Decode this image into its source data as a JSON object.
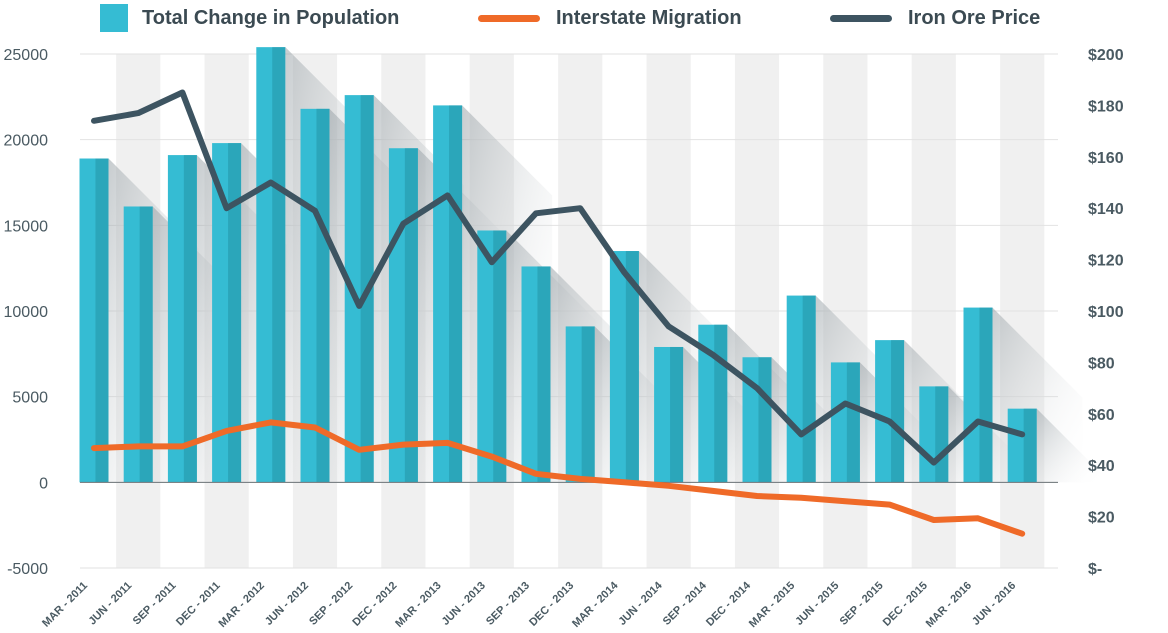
{
  "chart_data": {
    "type": "bar",
    "categories": [
      "MAR - 2011",
      "JUN - 2011",
      "SEP - 2011",
      "DEC - 2011",
      "MAR - 2012",
      "JUN - 2012",
      "SEP - 2012",
      "DEC - 2012",
      "MAR - 2013",
      "JUN - 2013",
      "SEP - 2013",
      "DEC - 2013",
      "MAR - 2014",
      "JUN - 2014",
      "SEP - 2014",
      "DEC - 2014",
      "MAR - 2015",
      "JUN - 2015",
      "SEP - 2015",
      "DEC - 2015",
      "MAR - 2016",
      "JUN - 2016"
    ],
    "series": [
      {
        "name": "Total Change in Population",
        "type": "bar",
        "axis": "left",
        "color": "#35bcd3",
        "values": [
          18900,
          16100,
          19100,
          19800,
          25400,
          21800,
          22600,
          19500,
          22000,
          14700,
          12600,
          9100,
          13500,
          7900,
          9200,
          7300,
          10900,
          7000,
          8300,
          5600,
          10200,
          4300
        ]
      },
      {
        "name": "Interstate Migration",
        "type": "line",
        "axis": "left",
        "color": "#ef6a28",
        "values": [
          2000,
          2100,
          2100,
          3000,
          3500,
          3200,
          1900,
          2200,
          2300,
          1500,
          500,
          200,
          0,
          -200,
          -500,
          -800,
          -900,
          -1100,
          -1300,
          -2200,
          -2100,
          -3000
        ]
      },
      {
        "name": "Iron Ore Price",
        "type": "line",
        "axis": "right",
        "color": "#3d5461",
        "values": [
          174,
          177,
          185,
          140,
          150,
          139,
          102,
          134,
          145,
          119,
          138,
          140,
          115,
          94,
          83,
          70,
          52,
          64,
          57,
          41,
          57,
          52
        ]
      }
    ],
    "left_axis": {
      "ylim": [
        -5000,
        25000
      ],
      "ticks": [
        25000,
        20000,
        15000,
        10000,
        5000,
        0,
        -5000
      ],
      "tick_labels": [
        "25000",
        "20000",
        "15000",
        "10000",
        "5000",
        "0",
        "-5000"
      ]
    },
    "right_axis": {
      "ylim": [
        0,
        200
      ],
      "ticks": [
        200,
        180,
        160,
        140,
        120,
        100,
        80,
        60,
        40,
        20,
        0
      ],
      "tick_labels": [
        "$200",
        "$180",
        "$160",
        "$140",
        "$120",
        "$100",
        "$80",
        "$60",
        "$40",
        "$20",
        "$-"
      ]
    },
    "legend": [
      "Total Change in Population",
      "Interstate Migration",
      "Iron Ore Price"
    ],
    "legend_position": "top",
    "grid": true,
    "title": "",
    "xlabel": "",
    "ylabel": ""
  },
  "colors": {
    "bar": "#35bcd3",
    "bar_shade": "#2394a6",
    "migration": "#ef6a28",
    "iron": "#3d5461",
    "stripe": "#f0f0f0",
    "axis_text": "#4a5a62"
  }
}
